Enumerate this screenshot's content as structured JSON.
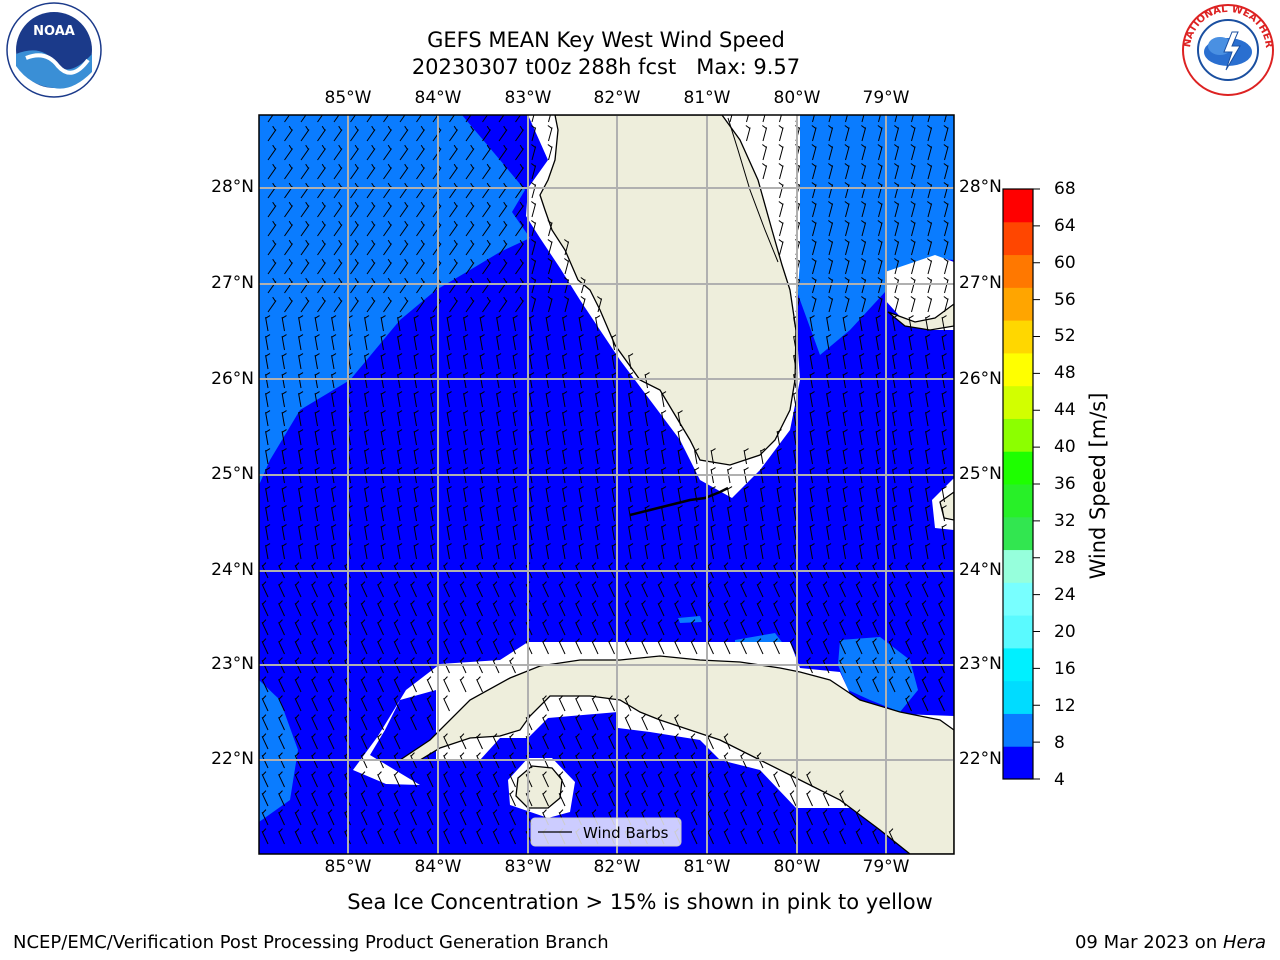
{
  "title": {
    "line1": "GEFS MEAN Key West Wind Speed",
    "line2": "20230307 t00z 288h fcst   Max: 9.57"
  },
  "map": {
    "lon_labels": [
      "85°W",
      "84°W",
      "83°W",
      "82°W",
      "81°W",
      "80°W",
      "79°W"
    ],
    "lat_labels": [
      "28°N",
      "27°N",
      "26°N",
      "25°N",
      "24°N",
      "23°N",
      "22°N"
    ],
    "land_color": "#eeeedc",
    "ocean_4_8_color": "#0000ff",
    "ocean_8_12_color": "#0a7cff",
    "legend_label": "Wind Barbs"
  },
  "colorbar": {
    "title": "Wind Speed [m/s]",
    "ticks": [
      "68",
      "64",
      "60",
      "56",
      "52",
      "48",
      "44",
      "40",
      "36",
      "32",
      "28",
      "24",
      "20",
      "16",
      "12",
      "8",
      "4"
    ],
    "colors": [
      "#0000ff",
      "#0a7cff",
      "#00dcff",
      "#00f0ff",
      "#5afaff",
      "#78ffff",
      "#96ffdc",
      "#32e650",
      "#28f028",
      "#1eff00",
      "#8cff00",
      "#d2ff00",
      "#ffff00",
      "#ffd700",
      "#ffa500",
      "#ff7800",
      "#ff4600",
      "#ff0000"
    ]
  },
  "note": "Sea Ice Concentration > 15% is shown in pink to yellow",
  "footer": {
    "left": "NCEP/EMC/Verification Post Processing Product Generation Branch",
    "date": "09 Mar 2023 on ",
    "host": "Hera"
  },
  "logos": {
    "noaa_text": "NOAA",
    "nws_text": "NATIONAL WEATHER SERVICE"
  }
}
